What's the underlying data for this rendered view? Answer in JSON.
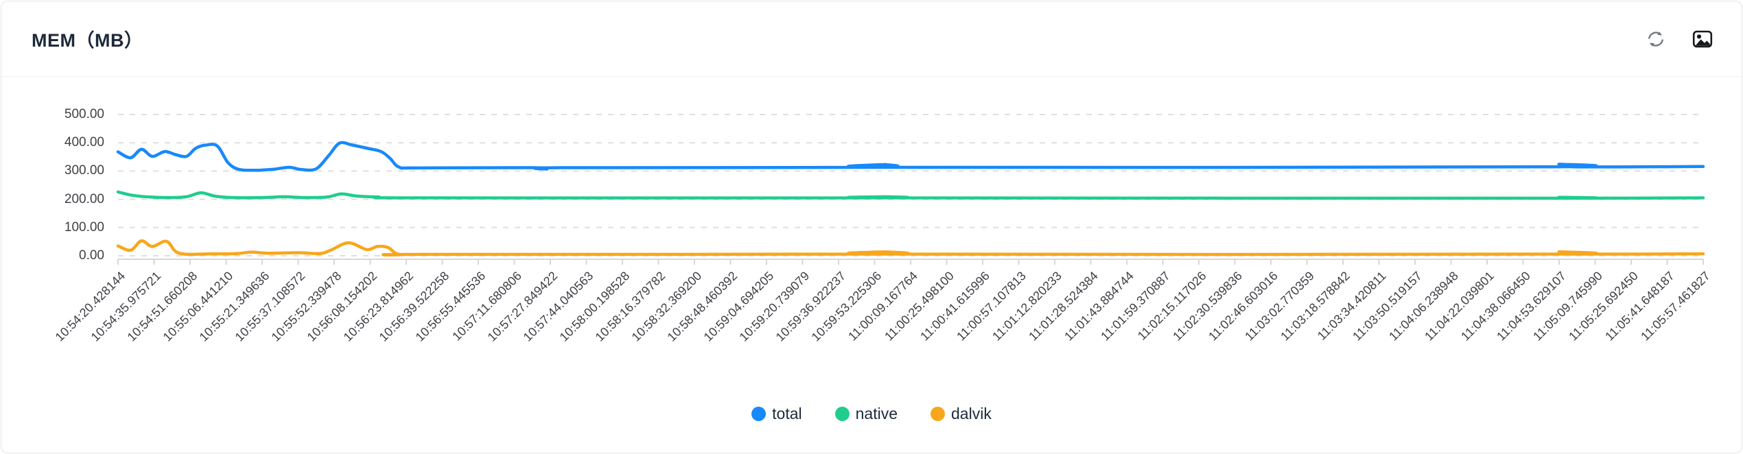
{
  "card": {
    "title": "MEM（MB）"
  },
  "header": {
    "icons": [
      "refresh-icon",
      "export-image-icon"
    ]
  },
  "colors": {
    "total": "#1789fb",
    "native": "#20cd8d",
    "dalvik": "#f7a71c",
    "gridline": "#dfdfdf",
    "axis": "#d7d7d7",
    "tick_text": "#3f4045",
    "title_text": "#1d2939"
  },
  "chart_data": {
    "type": "line",
    "title": "MEM（MB）",
    "xlabel": "",
    "ylabel": "",
    "ylim": [
      0,
      500
    ],
    "y_ticks": [
      "500.00",
      "400.00",
      "300.00",
      "200.00",
      "100.00",
      "0.00"
    ],
    "grid": "horizontal-dashed",
    "legend_position": "bottom-center",
    "categories": [
      "10:54:20.428144",
      "10:54:35.975721",
      "10:54:51.660208",
      "10:55:06.441210",
      "10:55:21.349636",
      "10:55:37.108572",
      "10:55:52.339478",
      "10:56:08.154202",
      "10:56:23.814962",
      "10:56:39.522258",
      "10:56:55.445536",
      "10:57:11.680806",
      "10:57:27.849422",
      "10:57:44.040563",
      "10:58:00.198528",
      "10:58:16.379782",
      "10:58:32.369200",
      "10:58:48.460392",
      "10:59:04.694205",
      "10:59:20.739079",
      "10:59:36.922237",
      "10:59:53.225306",
      "11:00:09.167764",
      "11:00:25.498100",
      "11:00:41.615996",
      "11:00:57.107813",
      "11:01:12.820233",
      "11:01:28.524384",
      "11:01:43.884744",
      "11:01:59.370887",
      "11:02:15.117026",
      "11:02:30.539836",
      "11:02:46.603016",
      "11:03:02.770359",
      "11:03:18.578842",
      "11:03:34.420811",
      "11:03:50.519157",
      "11:04:06.238948",
      "11:04:22.039801",
      "11:04:38.066450",
      "11:04:53.629107",
      "11:05:09.745990",
      "11:05:25.692450",
      "11:05:41.648187",
      "11:05:57.461827"
    ],
    "points_format": "[category_index (fractional), MB]",
    "series": [
      {
        "name": "total",
        "color": "#1789fb",
        "points": [
          [
            0,
            368
          ],
          [
            0.35,
            347
          ],
          [
            0.65,
            377
          ],
          [
            0.95,
            352
          ],
          [
            1.3,
            369
          ],
          [
            1.6,
            358
          ],
          [
            1.9,
            352
          ],
          [
            2.15,
            380
          ],
          [
            2.4,
            391
          ],
          [
            2.75,
            389
          ],
          [
            3.05,
            330
          ],
          [
            3.35,
            306
          ],
          [
            3.8,
            303
          ],
          [
            4.3,
            306
          ],
          [
            4.75,
            313
          ],
          [
            5.1,
            305
          ],
          [
            5.5,
            308
          ],
          [
            5.85,
            355
          ],
          [
            6.15,
            399
          ],
          [
            6.5,
            392
          ],
          [
            6.9,
            381
          ],
          [
            7.3,
            369
          ],
          [
            7.55,
            345
          ],
          [
            7.8,
            314
          ],
          [
            8.3,
            311
          ],
          [
            11.5,
            312
          ],
          [
            11.9,
            307
          ],
          [
            12.3,
            312
          ],
          [
            20.9,
            313
          ],
          [
            21.3,
            323
          ],
          [
            21.7,
            313
          ],
          [
            39.6,
            315
          ],
          [
            40,
            324
          ],
          [
            40.4,
            315
          ],
          [
            44,
            316
          ]
        ]
      },
      {
        "name": "native",
        "color": "#20cd8d",
        "points": [
          [
            0,
            226
          ],
          [
            0.4,
            214
          ],
          [
            0.9,
            208
          ],
          [
            1.4,
            206
          ],
          [
            1.9,
            209
          ],
          [
            2.3,
            223
          ],
          [
            2.7,
            211
          ],
          [
            3.2,
            206
          ],
          [
            4,
            206
          ],
          [
            4.6,
            209
          ],
          [
            5.2,
            206
          ],
          [
            5.8,
            208
          ],
          [
            6.2,
            219
          ],
          [
            6.6,
            212
          ],
          [
            7.2,
            208
          ],
          [
            8.5,
            205
          ],
          [
            20.9,
            205
          ],
          [
            21.3,
            209
          ],
          [
            21.7,
            205
          ],
          [
            39.6,
            204
          ],
          [
            40,
            207
          ],
          [
            40.4,
            204
          ],
          [
            44,
            205
          ]
        ]
      },
      {
        "name": "dalvik",
        "color": "#f7a71c",
        "points": [
          [
            0,
            35
          ],
          [
            0.35,
            20
          ],
          [
            0.65,
            53
          ],
          [
            0.95,
            33
          ],
          [
            1.35,
            51
          ],
          [
            1.7,
            9
          ],
          [
            2.6,
            7
          ],
          [
            3.3,
            8
          ],
          [
            3.7,
            13
          ],
          [
            4.2,
            9
          ],
          [
            5,
            11
          ],
          [
            5.6,
            8
          ],
          [
            5.9,
            20
          ],
          [
            6.4,
            46
          ],
          [
            6.9,
            22
          ],
          [
            7.2,
            33
          ],
          [
            7.5,
            29
          ],
          [
            7.8,
            5
          ],
          [
            8.5,
            5
          ],
          [
            20.9,
            6
          ],
          [
            21.3,
            14
          ],
          [
            21.7,
            6
          ],
          [
            39.6,
            6
          ],
          [
            40,
            14
          ],
          [
            40.4,
            6
          ],
          [
            44,
            7
          ]
        ]
      }
    ],
    "legend": [
      "total",
      "native",
      "dalvik"
    ]
  }
}
